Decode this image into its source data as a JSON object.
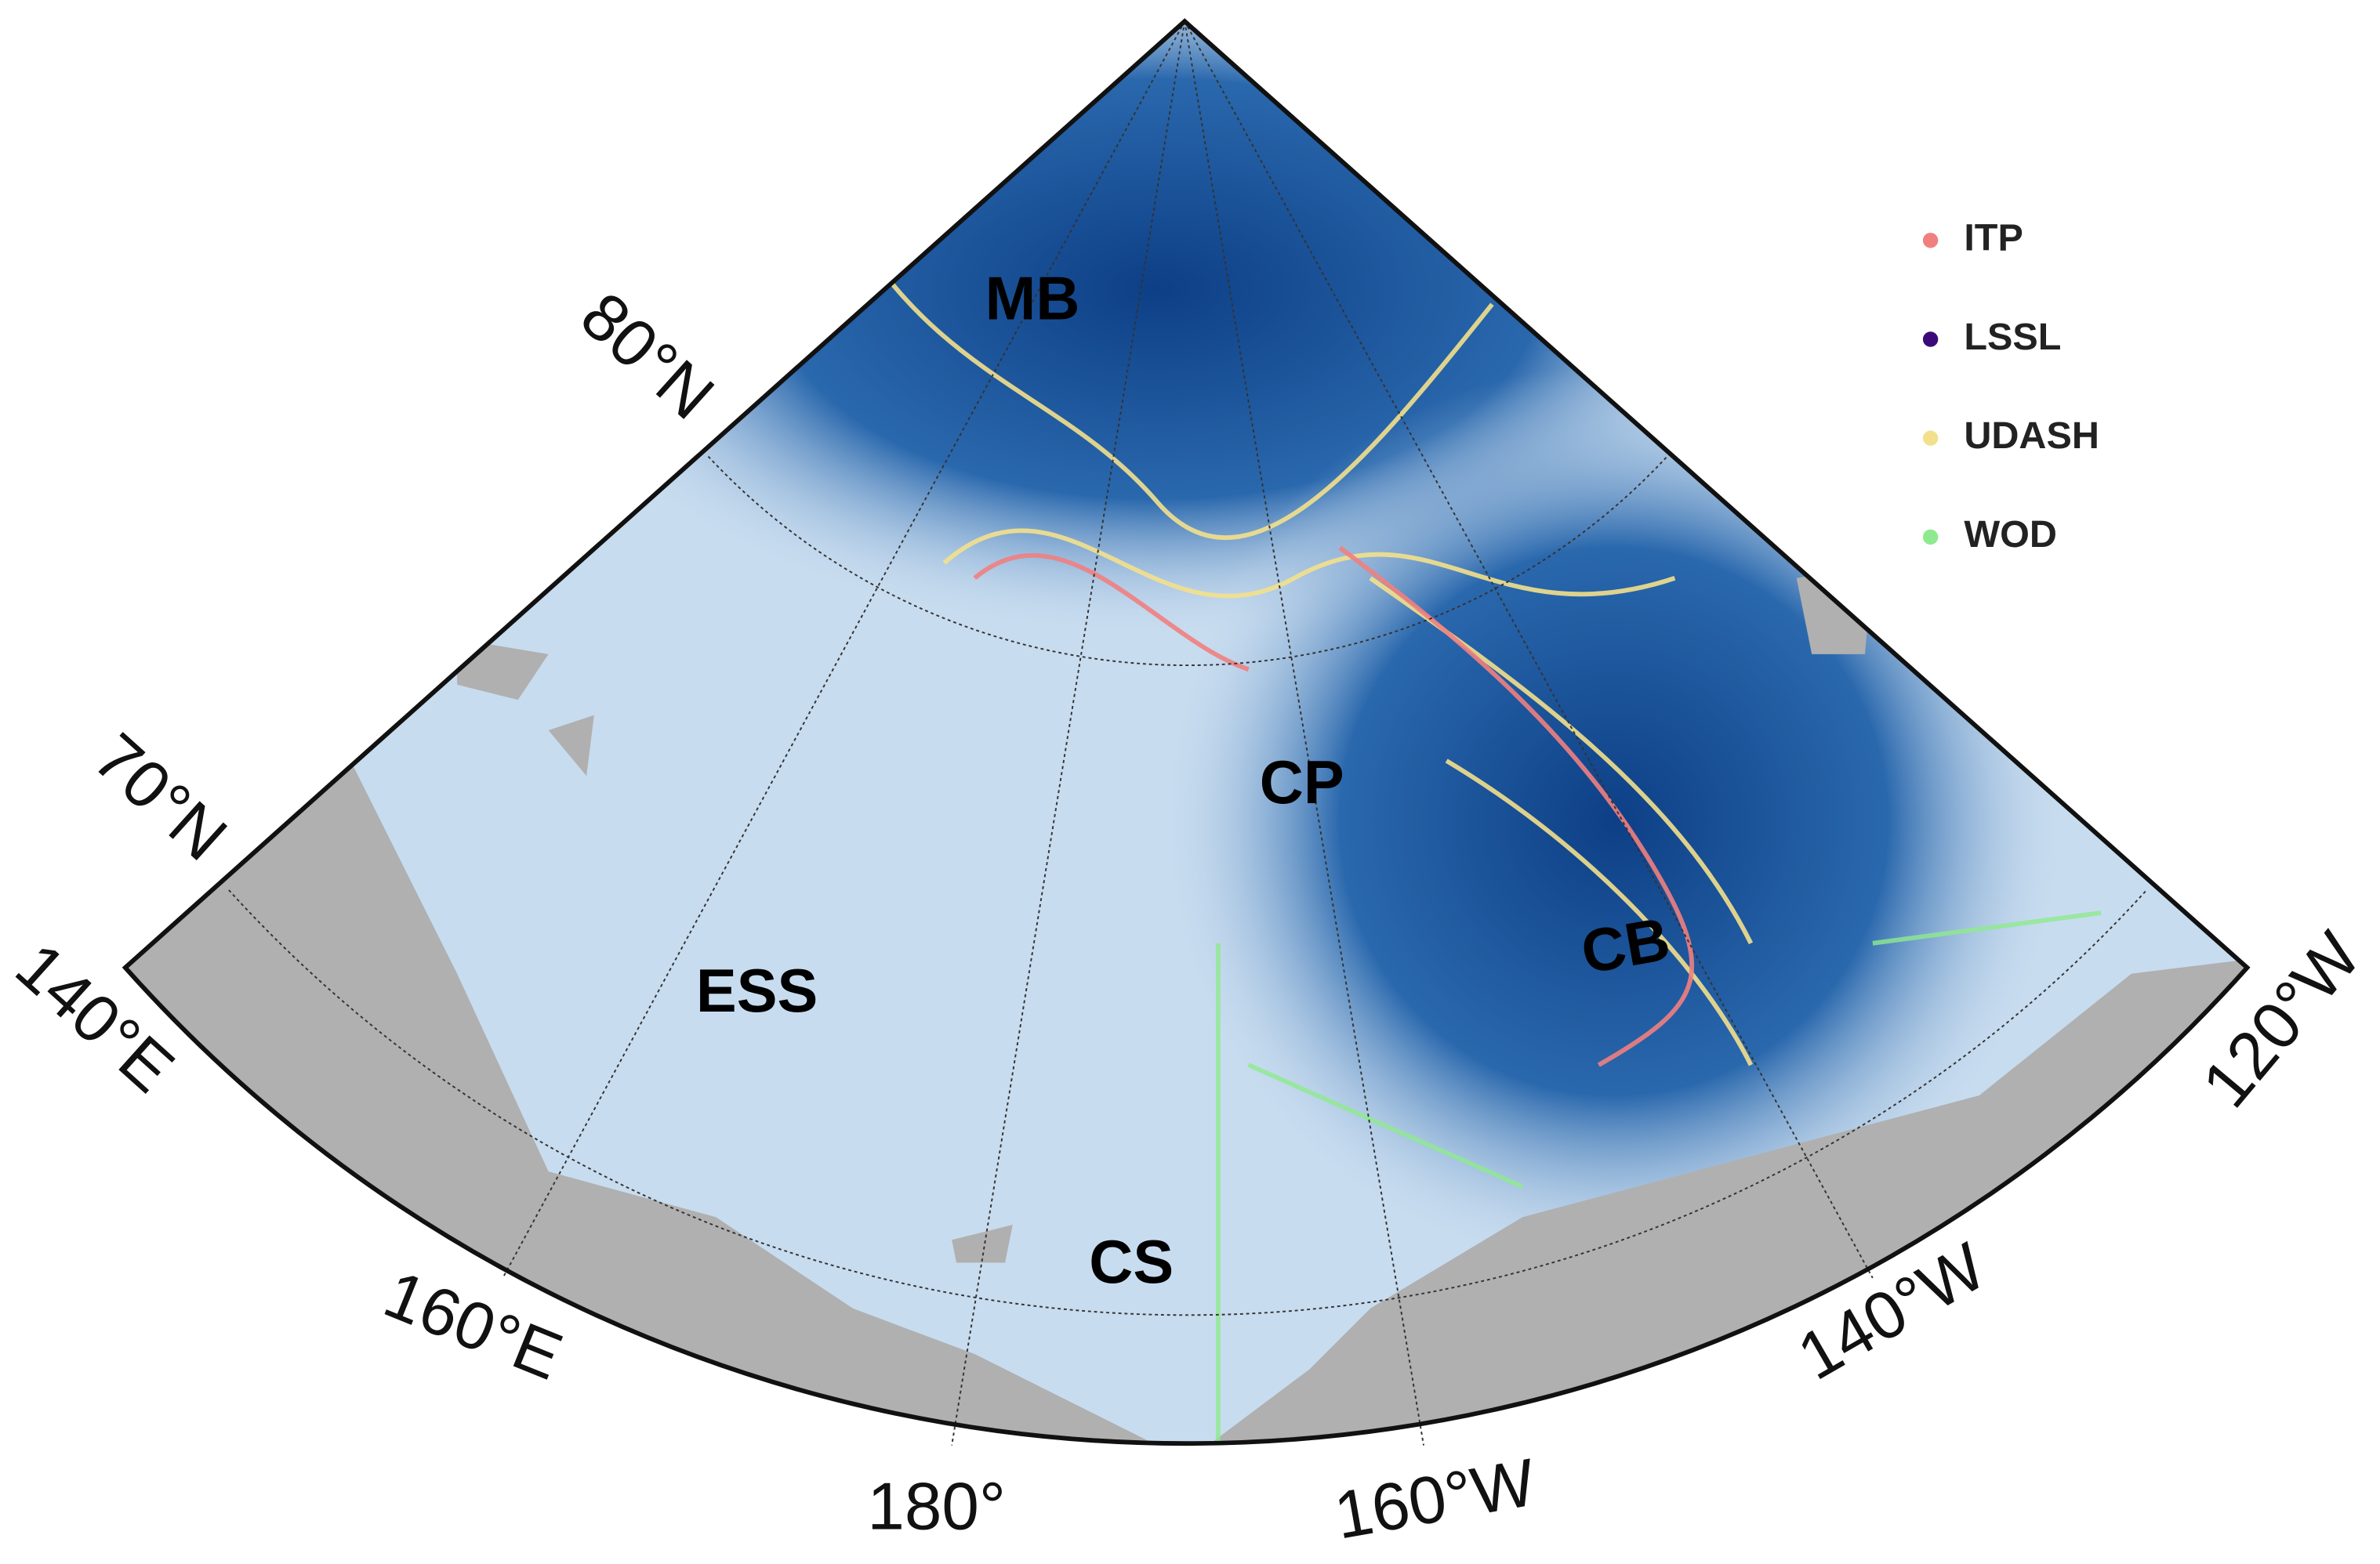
{
  "map": {
    "region_labels": [
      "MB",
      "CP",
      "CB",
      "ESS",
      "CS"
    ],
    "legend": [
      {
        "name": "ITP",
        "color": "#f08080"
      },
      {
        "name": "LSSL",
        "color": "#3b0a78"
      },
      {
        "name": "UDASH",
        "color": "#f3e08c"
      },
      {
        "name": "WOD",
        "color": "#8fea8f"
      }
    ],
    "latitude_labels": [
      "80°N",
      "70°N"
    ],
    "longitude_labels": [
      "140°E",
      "160°E",
      "180°",
      "160°W",
      "140°W",
      "120°W"
    ]
  }
}
